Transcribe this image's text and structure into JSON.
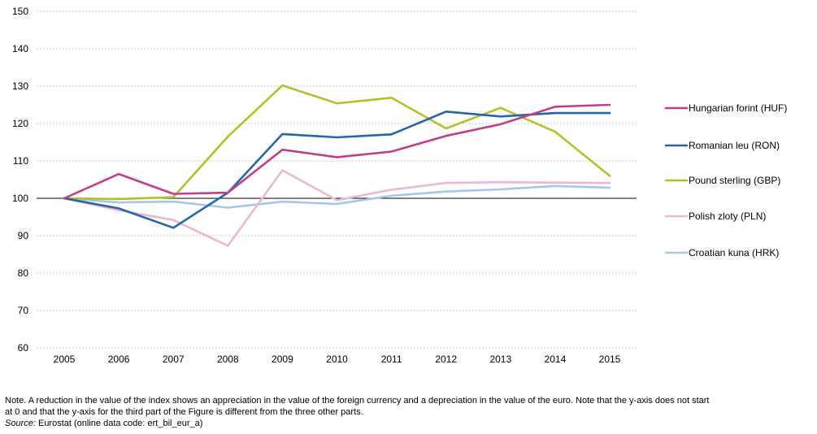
{
  "chart_data": {
    "type": "line",
    "categories": [
      "2005",
      "2006",
      "2007",
      "2008",
      "2009",
      "2010",
      "2011",
      "2012",
      "2013",
      "2014",
      "2015"
    ],
    "ylim": [
      60,
      150
    ],
    "yticks": [
      "60",
      "70",
      "80",
      "90",
      "100",
      "110",
      "120",
      "130",
      "140",
      "150"
    ],
    "grid": "horizontal dashed",
    "legend_position": "right",
    "series": [
      {
        "name": "Hungarian forint (HUF)",
        "color": "#c23f87",
        "values": [
          100,
          106.5,
          101.2,
          101.5,
          113.0,
          111.0,
          112.5,
          116.7,
          119.8,
          124.5,
          125.0
        ]
      },
      {
        "name": "Romanian leu (RON)",
        "color": "#2566ab",
        "values": [
          100,
          97.3,
          92.1,
          101.5,
          117.2,
          116.3,
          117.1,
          123.2,
          121.9,
          122.8,
          122.8
        ]
      },
      {
        "name": "Pound sterling (GBP)",
        "color": "#b7bf26",
        "values": [
          100,
          99.8,
          100.3,
          116.5,
          130.2,
          125.4,
          126.9,
          118.7,
          124.2,
          117.8,
          106.0
        ]
      },
      {
        "name": "Polish zloty (PLN)",
        "color": "#ebb7d3",
        "values": [
          100,
          96.8,
          94.2,
          87.3,
          107.5,
          99.5,
          102.3,
          104.1,
          104.3,
          104.2,
          104.1
        ]
      },
      {
        "name": "Croatian kuna (HRK)",
        "color": "#a4c8e6",
        "values": [
          100,
          98.9,
          99.1,
          97.5,
          99.1,
          98.5,
          100.7,
          101.8,
          102.4,
          103.3,
          102.8
        ]
      }
    ]
  },
  "footnote": {
    "note": "Note. A reduction in the value of the index shows an appreciation in the value of the foreign currency and a depreciation in the value of the euro. Note that the y-axis does not start at 0 and that the y-axis for the third part of the Figure is different from the three other parts.",
    "source_label": "Source:",
    "source_text": " Eurostat (online data code: ert_bil_eur_a)"
  }
}
